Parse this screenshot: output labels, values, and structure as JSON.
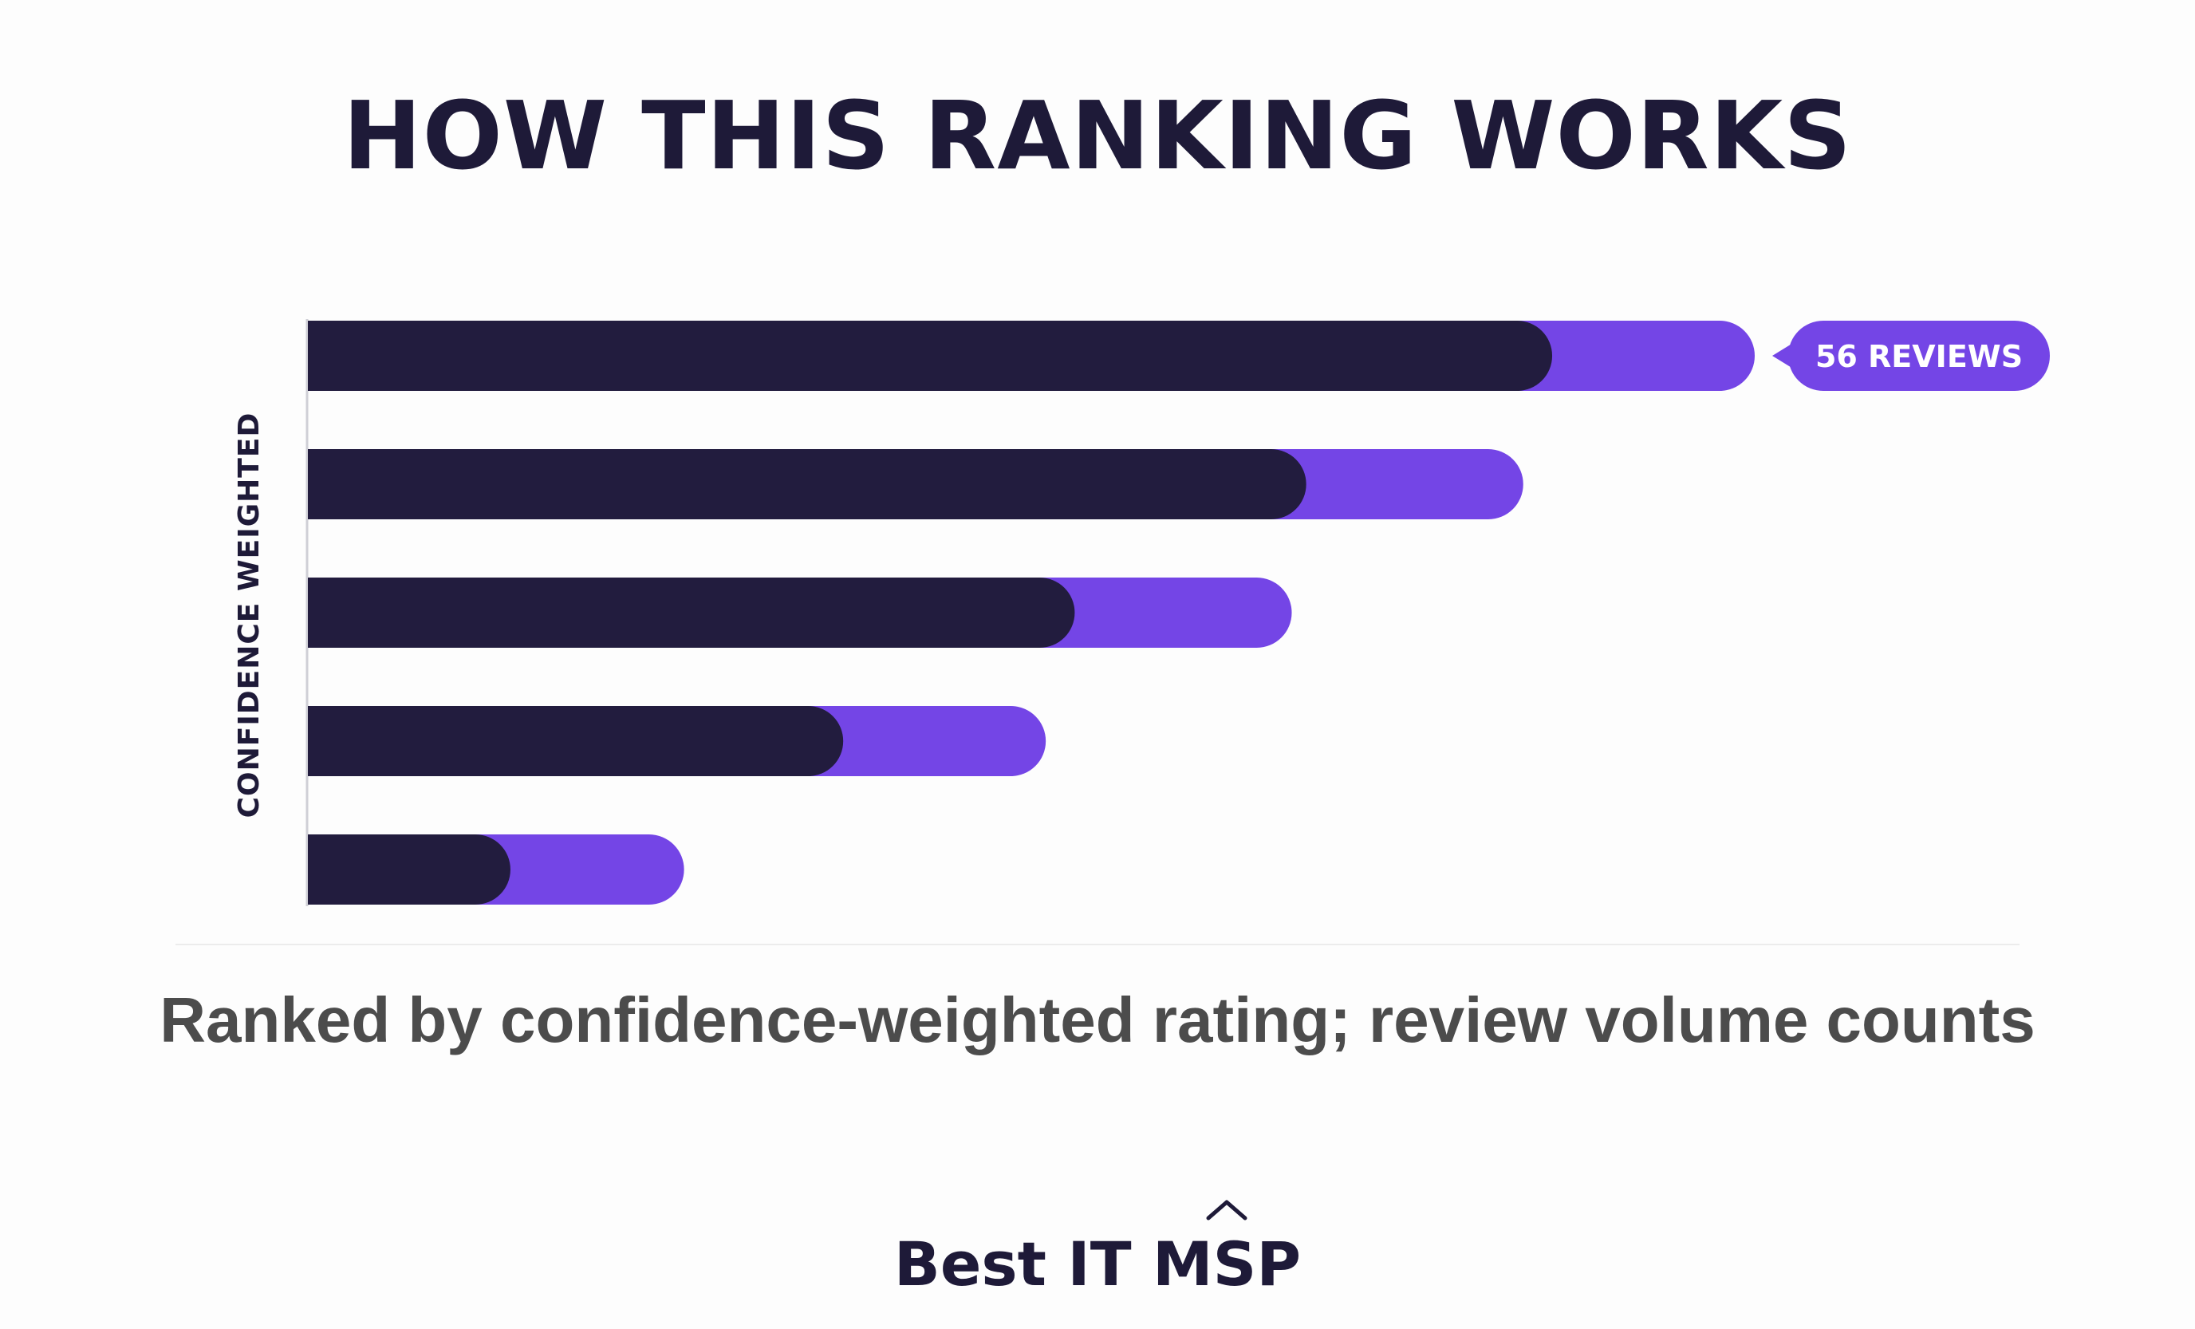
{
  "page": {
    "title": "HOW THIS RANKING WORKS",
    "caption": "Ranked by confidence-weighted rating; review volume counts",
    "brand": {
      "prefix": "Best IT ",
      "mark": "MSP",
      "mark_icon": "caret-up-icon"
    }
  },
  "colors": {
    "dark": "#221c3e",
    "accent": "#7445e6",
    "text": "#1e1a38",
    "caption": "#4c4c4c"
  },
  "chart_data": {
    "type": "bar",
    "orientation": "horizontal",
    "ylabel": "CONFIDENCE WEIGHTED",
    "xlim": [
      0,
      100
    ],
    "grid": false,
    "series": [
      {
        "values": [
          86,
          69,
          53,
          37,
          14
        ]
      },
      {
        "values": [
          100,
          84,
          68,
          51,
          26
        ]
      }
    ],
    "annotations": [
      {
        "bar_index": 0,
        "text": "56 REVIEWS"
      }
    ]
  }
}
